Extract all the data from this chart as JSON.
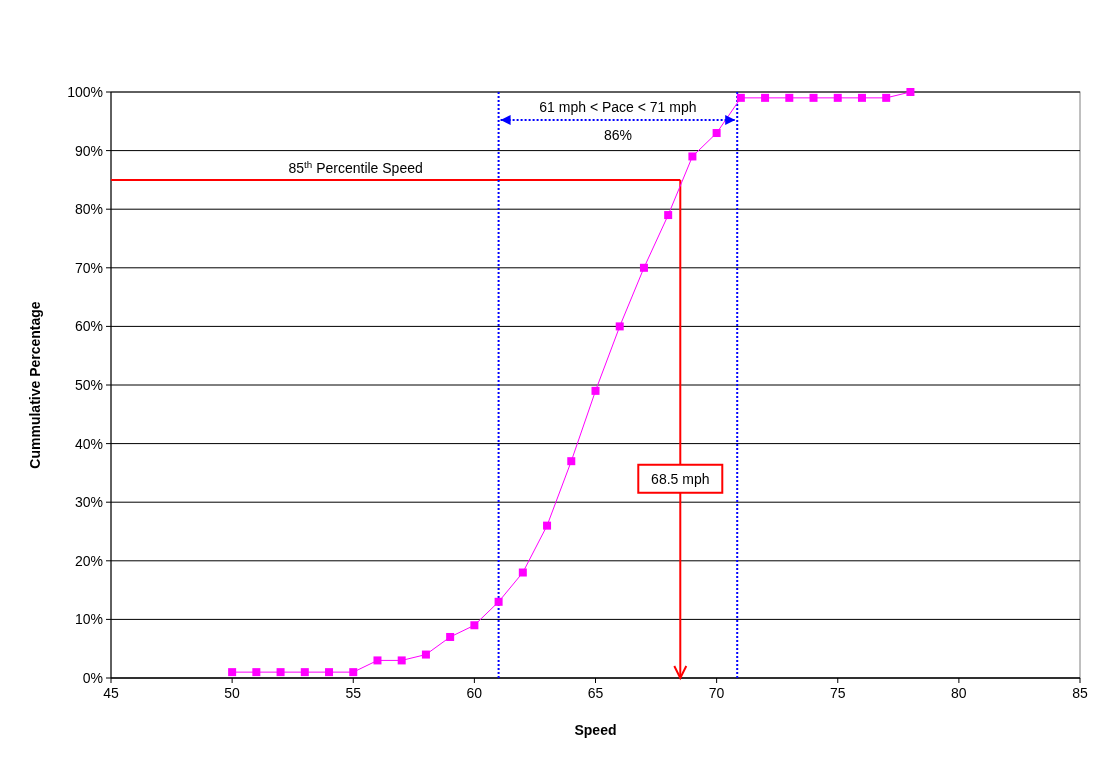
{
  "chart_data": {
    "type": "line",
    "xlabel": "Speed",
    "ylabel": "Cummulative Percentage",
    "xlim": [
      45,
      85
    ],
    "xticks": [
      45,
      50,
      55,
      60,
      65,
      70,
      75,
      80,
      85
    ],
    "ylim": [
      0,
      100
    ],
    "yticks": [
      {
        "value": 0,
        "label": "0%"
      },
      {
        "value": 10,
        "label": "10%"
      },
      {
        "value": 20,
        "label": "20%"
      },
      {
        "value": 30,
        "label": "30%"
      },
      {
        "value": 40,
        "label": "40%"
      },
      {
        "value": 50,
        "label": "50%"
      },
      {
        "value": 60,
        "label": "60%"
      },
      {
        "value": 70,
        "label": "70%"
      },
      {
        "value": 80,
        "label": "80%"
      },
      {
        "value": 90,
        "label": "90%"
      },
      {
        "value": 100,
        "label": "100%"
      }
    ],
    "grid": "y",
    "series": [
      {
        "color": "#ff00ff",
        "marker": "square",
        "x": [
          50,
          51,
          52,
          53,
          54,
          55,
          56,
          57,
          58,
          59,
          60,
          61,
          62,
          63,
          64,
          65,
          66,
          67,
          68,
          69,
          70,
          71,
          72,
          73,
          74,
          75,
          76,
          77,
          78
        ],
        "values": [
          1,
          1,
          1,
          1,
          1,
          1,
          3,
          3,
          4,
          7,
          9,
          13,
          18,
          26,
          37,
          49,
          60,
          70,
          79,
          89,
          93,
          99,
          99,
          99,
          99,
          99,
          99,
          99,
          100
        ]
      }
    ],
    "ref_lines": [
      {
        "axis": "y",
        "value": 85,
        "label": "85$^{th}$ Percentile Speed",
        "color": "#ff0000",
        "line_style": "solid"
      },
      {
        "axis": "x",
        "value": 68.5,
        "label": "68.5 mph",
        "color": "#ff0000",
        "line_style": "solid"
      },
      {
        "axis": "x",
        "value": 61,
        "color": "#0000ff",
        "line_style": "dotted"
      },
      {
        "axis": "x",
        "value": 70.85,
        "color": "#0000ff",
        "line_style": "dotted"
      }
    ],
    "annotations": [
      "61 mph < Pace < 71 mph",
      "86%"
    ]
  }
}
